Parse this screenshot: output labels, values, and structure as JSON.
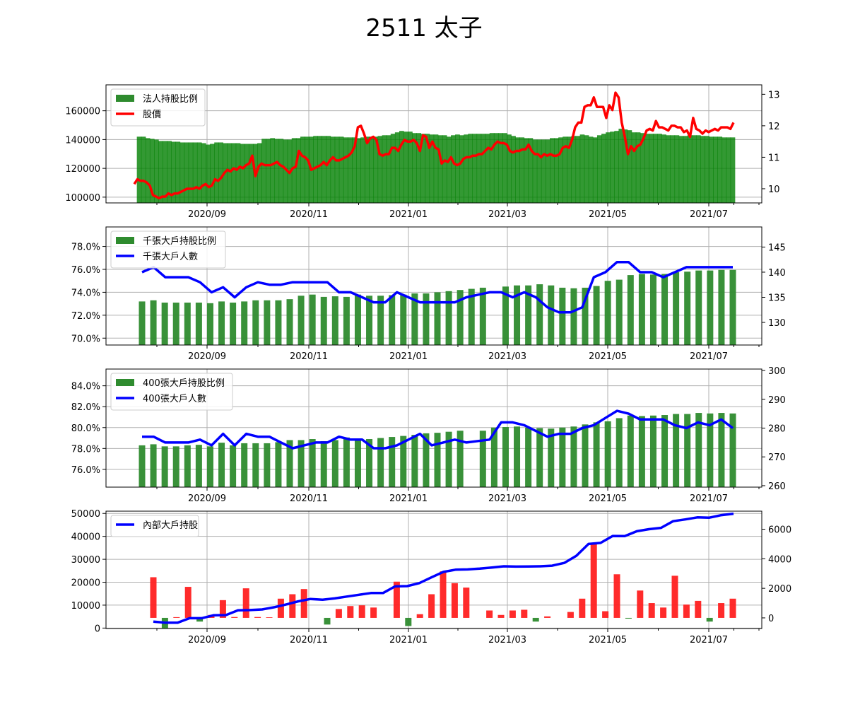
{
  "title": "2511 太子",
  "colors": {
    "bar": "#2e8b2e",
    "green_bar": "#008000",
    "red_bar": "#ff2020",
    "price_line": "#ff0000",
    "count_line": "#0000ff",
    "grid": "#b0b0b0"
  },
  "x_ticks": [
    "2020/09",
    "2020/11",
    "2021/01",
    "2021/03",
    "2021/05",
    "2021/07"
  ],
  "chart_data": [
    {
      "type": "bar+line",
      "legend": [
        "法人持股比例",
        "股價"
      ],
      "legend_placement": "upper-left",
      "grid": true,
      "y_left_ticks": [
        "100000",
        "120000",
        "140000",
        "160000"
      ],
      "y_left_range": [
        96000,
        178000
      ],
      "y_right_ticks": [
        "10",
        "11",
        "12",
        "13"
      ],
      "y_right_range": [
        9.55,
        13.3
      ],
      "bars_left_axis": [
        142000,
        142000,
        141000,
        140500,
        140000,
        139000,
        139000,
        139000,
        138500,
        138500,
        138000,
        138000,
        138000,
        138000,
        138000,
        137500,
        136500,
        137000,
        138000,
        138000,
        137500,
        137500,
        137500,
        137500,
        137000,
        137000,
        137000,
        137000,
        137500,
        140500,
        140500,
        141000,
        140500,
        140500,
        140000,
        140000,
        141000,
        141000,
        142000,
        142000,
        142000,
        142500,
        142500,
        142500,
        142500,
        142000,
        142000,
        142000,
        141500,
        141500,
        141500,
        141000,
        141500,
        142000,
        142000,
        142000,
        142500,
        143000,
        143000,
        144000,
        145000,
        146000,
        145500,
        145500,
        144500,
        144500,
        144000,
        144000,
        143500,
        143500,
        143000,
        143000,
        142000,
        143000,
        143500,
        143000,
        143500,
        144000,
        144000,
        144000,
        144000,
        144000,
        144500,
        144500,
        144500,
        144500,
        143500,
        142500,
        141500,
        141500,
        141000,
        141000,
        140000,
        140000,
        140000,
        140000,
        141000,
        141000,
        141500,
        142000,
        142000,
        142500,
        142500,
        143500,
        143000,
        142000,
        141500,
        143000,
        144000,
        145000,
        145500,
        146000,
        147500,
        147000,
        146500,
        145000,
        145000,
        144500,
        144000,
        144000,
        144000,
        144000,
        143500,
        143000,
        143000,
        143000,
        142500,
        142500,
        143000,
        143000,
        143000,
        142500,
        142500,
        142000,
        142000,
        142000,
        141500,
        141500,
        141500
      ],
      "line_right_axis": [
        10.15,
        10.3,
        10.25,
        10.25,
        10.2,
        10.1,
        9.8,
        9.75,
        9.7,
        9.75,
        9.75,
        9.85,
        9.8,
        9.85,
        9.85,
        9.9,
        9.95,
        10.0,
        10.0,
        10.0,
        10.05,
        10.0,
        10.1,
        10.15,
        10.05,
        10.1,
        10.3,
        10.25,
        10.35,
        10.5,
        10.6,
        10.55,
        10.65,
        10.6,
        10.7,
        10.65,
        10.75,
        10.8,
        11.05,
        10.4,
        10.7,
        10.8,
        10.75,
        10.75,
        10.75,
        10.8,
        10.85,
        10.75,
        10.7,
        10.6,
        10.5,
        10.65,
        10.7,
        11.2,
        11.05,
        11.0,
        10.9,
        10.6,
        10.65,
        10.7,
        10.75,
        10.85,
        10.75,
        10.9,
        11.0,
        10.9,
        10.9,
        10.95,
        11.0,
        11.05,
        11.15,
        11.35,
        11.95,
        12.0,
        11.75,
        11.45,
        11.6,
        11.65,
        11.55,
        11.1,
        11.05,
        11.1,
        11.1,
        11.3,
        11.3,
        11.2,
        11.4,
        11.55,
        11.5,
        11.5,
        11.55,
        11.45,
        11.2,
        11.7,
        11.65,
        11.3,
        11.5,
        11.3,
        11.25,
        10.8,
        10.9,
        10.85,
        11.0,
        10.8,
        10.75,
        10.8,
        10.95,
        11.0,
        11.0,
        11.05,
        11.05,
        11.1,
        11.1,
        11.2,
        11.3,
        11.25,
        11.4,
        11.5,
        11.45,
        11.45,
        11.4,
        11.2,
        11.15,
        11.2,
        11.2,
        11.25,
        11.25,
        11.4,
        11.2,
        11.1,
        11.1,
        11.0,
        11.1,
        11.05,
        11.1,
        11.05,
        11.05,
        11.1,
        11.3,
        11.35,
        11.3,
        11.55,
        11.95,
        12.1,
        12.1,
        12.6,
        12.65,
        12.65,
        12.9,
        12.6,
        12.6,
        12.6,
        12.25,
        12.65,
        12.5,
        13.05,
        12.9,
        12.1,
        11.65,
        11.1,
        11.35,
        11.2,
        11.35,
        11.4,
        11.6,
        11.85,
        11.9,
        11.85,
        12.15,
        11.95,
        11.95,
        11.9,
        11.85,
        12.0,
        12.0,
        11.95,
        11.95,
        11.8,
        11.85,
        11.65,
        12.25,
        11.9,
        11.85,
        11.75,
        11.85,
        11.8,
        11.85,
        11.9,
        11.85,
        11.95,
        11.95,
        11.95,
        11.9,
        12.1
      ]
    },
    {
      "type": "bar+line",
      "legend": [
        "千張大戶持股比例",
        "千張大戶人數"
      ],
      "legend_placement": "upper-left",
      "grid": true,
      "y_left_ticks": [
        "70.0%",
        "72.0%",
        "74.0%",
        "76.0%",
        "78.0%"
      ],
      "y_left_range": [
        69.4,
        79.7
      ],
      "y_right_ticks": [
        "130",
        "135",
        "140",
        "145"
      ],
      "y_right_range": [
        125.5,
        149
      ],
      "bars_left_percent": [
        73.2,
        73.3,
        73.1,
        73.1,
        73.1,
        73.1,
        73.05,
        73.2,
        73.1,
        73.2,
        73.3,
        73.3,
        73.3,
        73.4,
        73.7,
        73.8,
        73.6,
        73.65,
        73.6,
        73.8,
        73.7,
        73.7,
        73.75,
        73.8,
        73.9,
        73.9,
        74.0,
        74.1,
        74.2,
        74.3,
        74.4,
        null,
        74.5,
        74.6,
        74.6,
        74.7,
        74.6,
        74.4,
        74.35,
        74.4,
        74.55,
        75.0,
        75.1,
        75.5,
        75.6,
        75.55,
        75.6,
        75.75,
        75.8,
        75.9,
        75.9,
        75.95,
        75.95
      ],
      "line_right_axis": [
        140,
        141,
        139,
        139,
        139,
        138,
        136,
        137,
        135,
        137,
        138,
        137.5,
        137.5,
        138,
        138,
        138,
        138,
        136,
        136,
        135,
        134,
        134,
        136,
        135,
        134,
        134,
        134,
        134,
        135,
        135.5,
        136,
        136,
        135,
        136,
        135,
        133,
        132,
        132,
        133,
        139,
        140,
        142,
        142,
        140,
        140,
        139,
        140,
        141,
        141,
        141,
        141,
        141
      ]
    },
    {
      "type": "bar+line",
      "legend": [
        "400張大戶持股比例",
        "400張大戶人數"
      ],
      "legend_placement": "upper-left",
      "grid": true,
      "y_left_ticks": [
        "76.0%",
        "78.0%",
        "80.0%",
        "82.0%",
        "84.0%"
      ],
      "y_left_range": [
        74.3,
        85.6
      ],
      "y_right_ticks": [
        "260",
        "270",
        "280",
        "290",
        "300"
      ],
      "y_right_range": [
        259.5,
        300.5
      ],
      "bars_left_percent": [
        78.3,
        78.4,
        78.2,
        78.2,
        78.3,
        78.35,
        78.2,
        78.55,
        78.3,
        78.5,
        78.5,
        78.5,
        78.6,
        78.8,
        78.8,
        78.9,
        78.7,
        78.8,
        79.05,
        78.9,
        78.9,
        79.0,
        79.1,
        79.2,
        79.3,
        79.45,
        79.5,
        79.6,
        79.7,
        null,
        79.7,
        80.0,
        80.05,
        80.1,
        80.0,
        79.95,
        79.9,
        80.0,
        80.1,
        80.3,
        80.5,
        80.6,
        80.9,
        81.15,
        81.1,
        81.15,
        81.2,
        81.3,
        81.3,
        81.4,
        81.35,
        81.4,
        81.35
      ],
      "line_right_axis": [
        277,
        277,
        275,
        275,
        275,
        276,
        274,
        278,
        274,
        278,
        277,
        277,
        275,
        273,
        274,
        275,
        275,
        277,
        276,
        276,
        273,
        273,
        274,
        276,
        278,
        274,
        275,
        276,
        275,
        275.5,
        276,
        282,
        282,
        281,
        279,
        277,
        278,
        278,
        280,
        281,
        283.5,
        286,
        285,
        283,
        283,
        283,
        281,
        280,
        282,
        281,
        283,
        280
      ]
    },
    {
      "type": "bar+line",
      "legend": [
        "內部大戶持股"
      ],
      "legend_placement": "upper-left",
      "grid": true,
      "y_left_ticks": [
        "0",
        "10000",
        "20000",
        "30000",
        "40000",
        "50000"
      ],
      "y_left_range": [
        -200,
        51000
      ],
      "y_right_ticks": [
        "0",
        "2000",
        "4000",
        "6000"
      ],
      "y_right_range": [
        -720,
        7220
      ],
      "bars_right_axis": [
        2750,
        -700,
        50,
        2100,
        -250,
        200,
        1200,
        60,
        2000,
        60,
        40,
        1300,
        1600,
        1950,
        null,
        -450,
        600,
        800,
        850,
        700,
        null,
        2450,
        -550,
        250,
        1600,
        3150,
        2350,
        2050,
        null,
        500,
        200,
        500,
        550,
        -250,
        100,
        null,
        400,
        1300,
        5000,
        450,
        2950,
        -50,
        1850,
        1000,
        700,
        2850,
        900,
        1150,
        -250,
        1000,
        1300
      ],
      "line_right_axis": [
        -250,
        -330,
        -330,
        -20,
        -20,
        180,
        190,
        510,
        530,
        570,
        720,
        910,
        1120,
        1280,
        1230,
        1320,
        1440,
        1560,
        1680,
        1680,
        2130,
        2150,
        2350,
        2740,
        3110,
        3260,
        3280,
        3330,
        3410,
        3490,
        3470,
        3480,
        3490,
        3530,
        3720,
        4200,
        5000,
        5070,
        5540,
        5530,
        5860,
        6000,
        6090,
        6540,
        6660,
        6800,
        6780,
        6950,
        7050
      ]
    }
  ]
}
